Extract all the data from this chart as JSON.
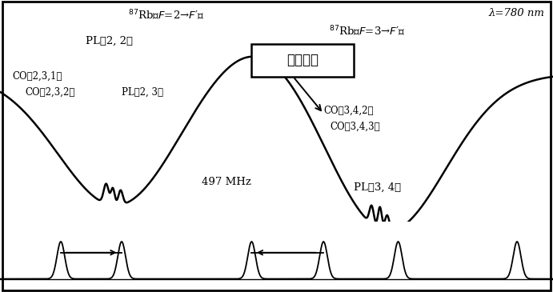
{
  "title_lambda": "λ=780 nm",
  "label_rb2": "$^{87}$Rb（$F$=2→$F$′）",
  "label_rb3": "$^{87}$Rb（$F$=3→$F$′）",
  "label_pl22": "PL［2, 2］",
  "label_co231": "CO［2,3,1］",
  "label_co232": "CO［2,3,2］",
  "label_pl23": "PL［2, 3］",
  "label_co342": "CO［3,4,2］",
  "label_co343": "CO［3,4,3］",
  "label_pl34": "PL［3, 4］",
  "label_doppler": "多普勒峰",
  "label_497": "497 MHz",
  "bg_color": "#ffffff",
  "line_color": "#000000",
  "curve_ylim": [
    -2.8,
    1.4
  ],
  "osc_ylim": [
    -0.3,
    1.3
  ]
}
